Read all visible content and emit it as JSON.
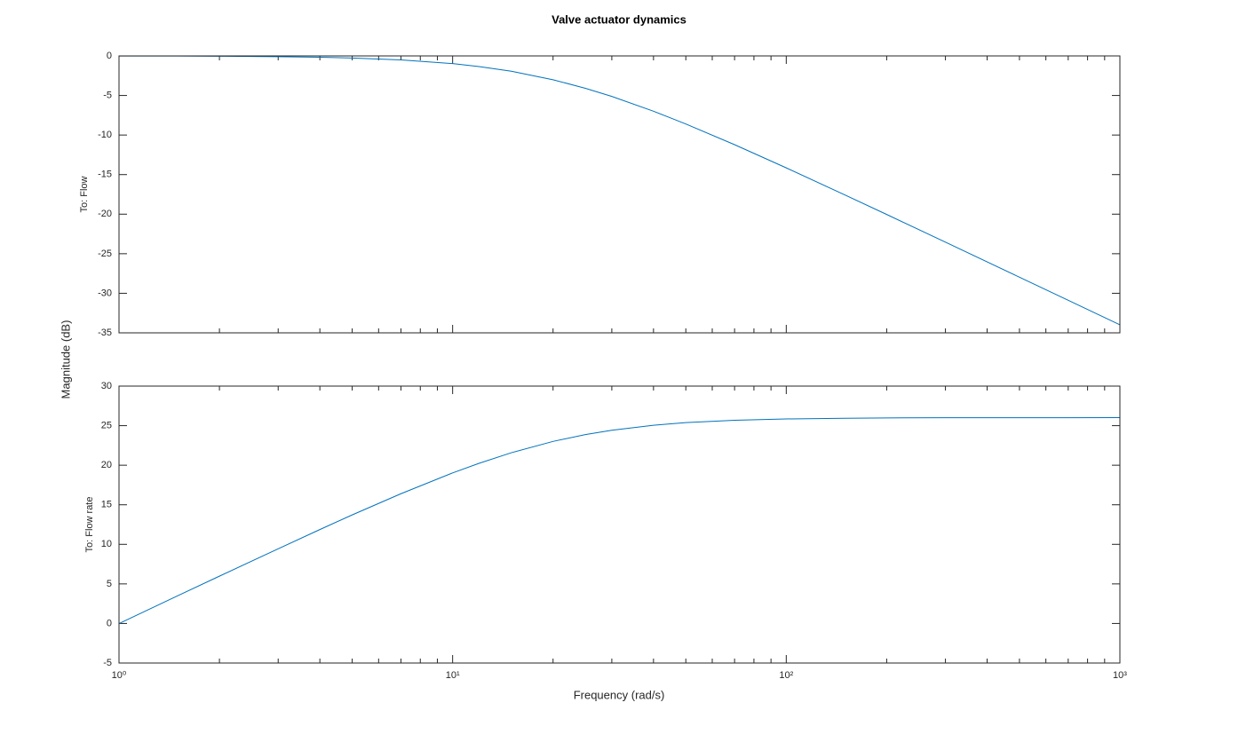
{
  "title": "Valve actuator dynamics",
  "xlabel": "Frequency (rad/s)",
  "ylabel": "Magnitude (dB)",
  "chart_data": [
    {
      "type": "line",
      "subtitle": "To: Flow",
      "xscale": "log",
      "color": "#0072bd",
      "x": [
        1,
        1.5,
        2,
        3,
        4,
        5,
        7,
        10,
        12,
        15,
        20,
        25,
        30,
        40,
        50,
        70,
        100,
        150,
        200,
        300,
        500,
        700,
        1000
      ],
      "values": [
        -0.01,
        -0.02,
        -0.04,
        -0.1,
        -0.17,
        -0.26,
        -0.5,
        -0.97,
        -1.34,
        -1.94,
        -3.01,
        -4.09,
        -5.12,
        -6.99,
        -8.6,
        -11.22,
        -14.15,
        -17.58,
        -20.04,
        -23.54,
        -27.97,
        -30.89,
        -33.98
      ],
      "xlim": [
        1,
        1000
      ],
      "xticks": [
        1,
        10,
        100,
        1000
      ],
      "ylim": [
        -35,
        0
      ],
      "yticks": [
        -35,
        -30,
        -25,
        -20,
        -15,
        -10,
        -5,
        0
      ],
      "grid": false
    },
    {
      "type": "line",
      "subtitle": "To: Flow rate",
      "xscale": "log",
      "color": "#0072bd",
      "x": [
        1,
        1.5,
        2,
        3,
        4,
        5,
        7,
        10,
        12,
        15,
        20,
        25,
        30,
        40,
        50,
        70,
        100,
        150,
        200,
        300,
        500,
        700,
        1000
      ],
      "values": [
        -0.01,
        3.5,
        5.98,
        9.44,
        11.87,
        13.72,
        16.4,
        19.03,
        20.24,
        21.58,
        23.01,
        23.87,
        24.42,
        25.05,
        25.38,
        25.68,
        25.85,
        25.94,
        25.98,
        26.0,
        26.01,
        26.01,
        26.02
      ],
      "xlim": [
        1,
        1000
      ],
      "xticks": [
        {
          "value": 1,
          "label": "10⁰"
        },
        {
          "value": 10,
          "label": "10¹"
        },
        {
          "value": 100,
          "label": "10²"
        },
        {
          "value": 1000,
          "label": "10³"
        }
      ],
      "ylim": [
        -5,
        30
      ],
      "yticks": [
        -5,
        0,
        5,
        10,
        15,
        20,
        25,
        30
      ],
      "grid": false
    }
  ]
}
